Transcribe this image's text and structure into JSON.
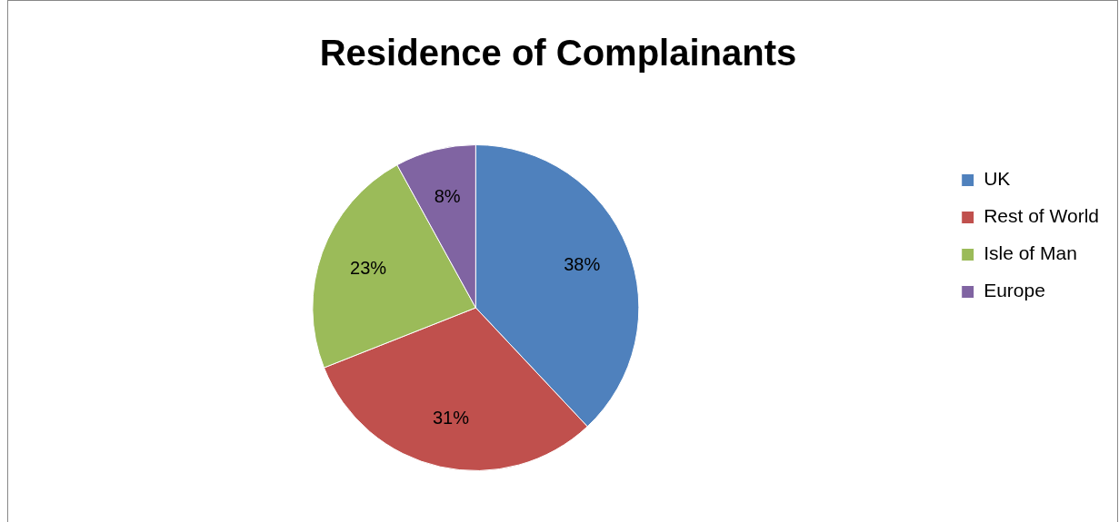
{
  "chart_data": {
    "type": "pie",
    "title": "Residence of Complainants",
    "categories": [
      "UK",
      "Rest of World",
      "Isle of Man",
      "Europe"
    ],
    "values": [
      38,
      31,
      23,
      8
    ],
    "colors": [
      "#4f81bd",
      "#c0504d",
      "#9bbb59",
      "#8064a2"
    ],
    "value_labels": [
      "38%",
      "31%",
      "23%",
      "8%"
    ],
    "legend": "right"
  }
}
